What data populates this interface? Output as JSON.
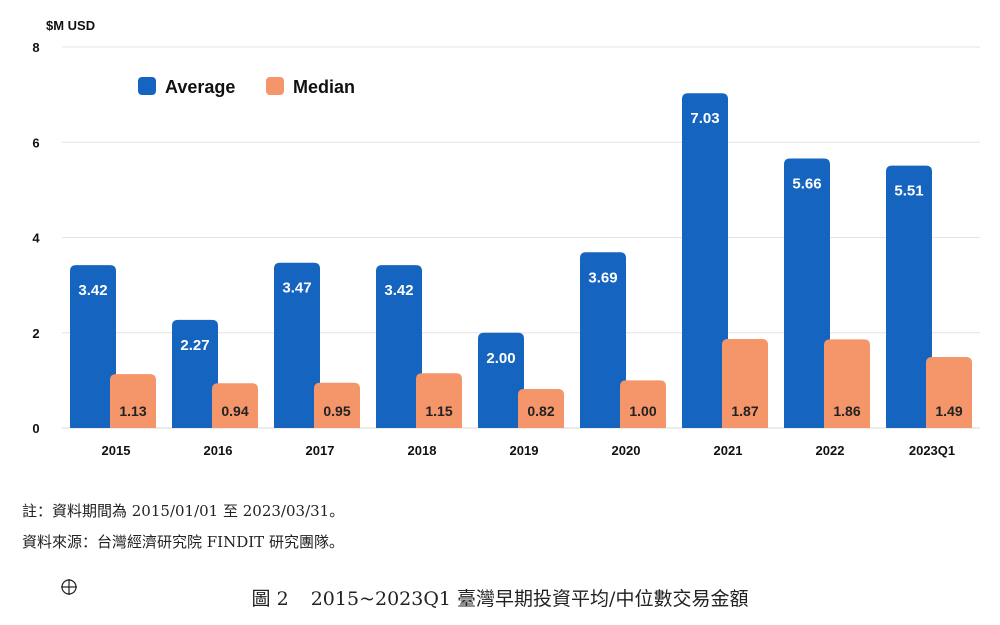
{
  "chart_data": {
    "type": "bar",
    "categories": [
      "2015",
      "2016",
      "2017",
      "2018",
      "2019",
      "2020",
      "2021",
      "2022",
      "2023Q1"
    ],
    "series": [
      {
        "name": "Average",
        "color": "#1565c0",
        "values": [
          3.42,
          2.27,
          3.47,
          3.42,
          2.0,
          3.69,
          7.03,
          5.66,
          5.51
        ],
        "labels": [
          "3.42",
          "2.27",
          "3.47",
          "3.42",
          "2.00",
          "3.69",
          "7.03",
          "5.66",
          "5.51"
        ]
      },
      {
        "name": "Median",
        "color": "#f4956a",
        "values": [
          1.13,
          0.94,
          0.95,
          1.15,
          0.82,
          1.0,
          1.87,
          1.86,
          1.49
        ],
        "labels": [
          "1.13",
          "0.94",
          "0.95",
          "1.15",
          "0.82",
          "1.00",
          "1.87",
          "1.86",
          "1.49"
        ]
      }
    ],
    "ylabel": "$M USD",
    "ylim": [
      0,
      8
    ],
    "yticks": [
      0,
      2,
      4,
      6,
      8
    ],
    "grid": true,
    "legend_position": "top-left"
  },
  "notes": {
    "note1": "註：資料期間為 2015/01/01 至 2023/03/31。",
    "note2": "資料來源：台灣經濟研究院 FINDIT 研究團隊。"
  },
  "caption": {
    "figure_no": "圖 2",
    "title": "2015~2023Q1 臺灣早期投資平均/中位數交易金額"
  }
}
